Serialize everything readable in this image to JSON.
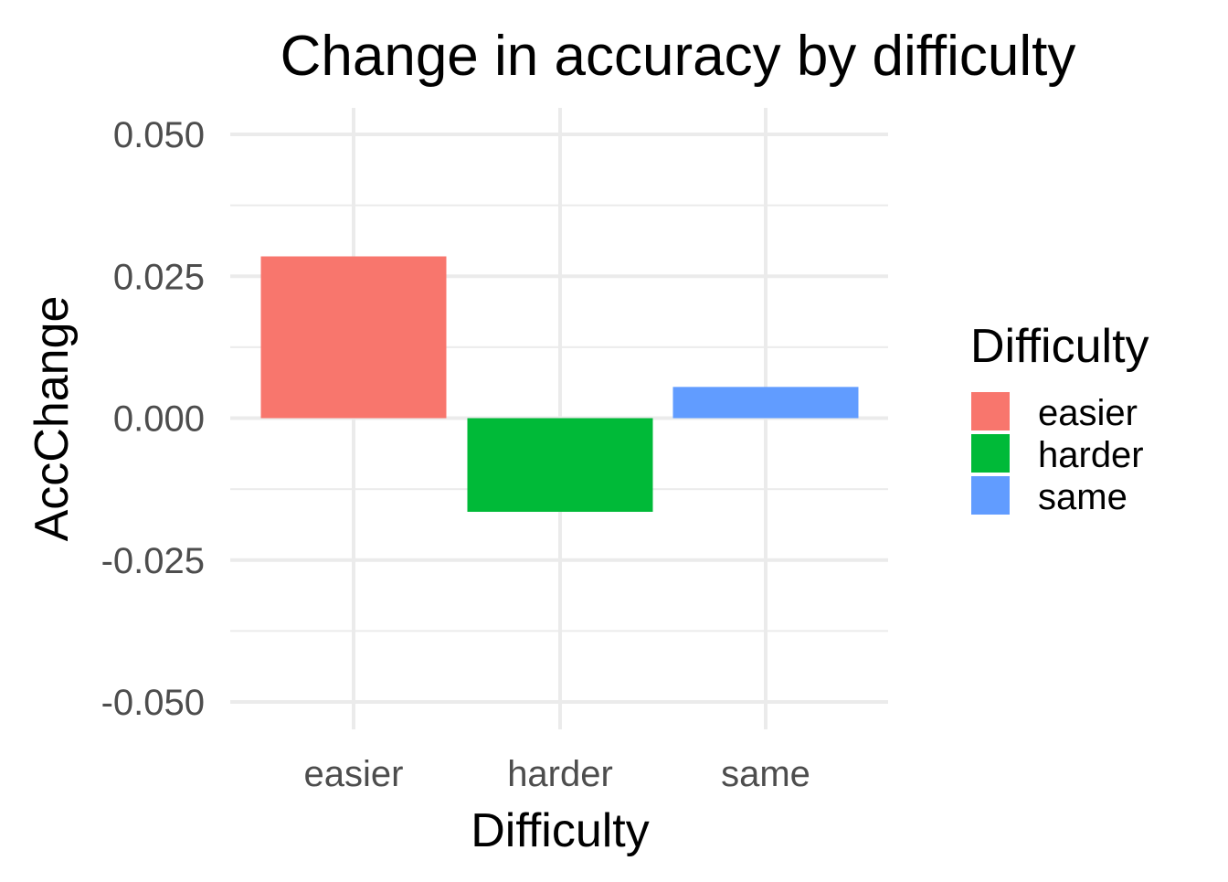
{
  "chart_data": {
    "type": "bar",
    "title": "Change in accuracy by difficulty",
    "xlabel": "Difficulty",
    "ylabel": "AccChange",
    "categories": [
      "easier",
      "harder",
      "same"
    ],
    "values": [
      0.0285,
      -0.0165,
      0.0055
    ],
    "colors": [
      "#F8766D",
      "#00BA38",
      "#619CFF"
    ],
    "ylim": [
      -0.05,
      0.05
    ],
    "yticks": [
      -0.05,
      -0.025,
      0.0,
      0.025,
      0.05
    ],
    "ytick_labels": [
      "-0.050",
      "-0.025",
      "0.000",
      "0.025",
      "0.050"
    ],
    "grid": true,
    "legend": {
      "title": "Difficulty",
      "placement": "right",
      "entries": [
        "easier",
        "harder",
        "same"
      ]
    }
  }
}
